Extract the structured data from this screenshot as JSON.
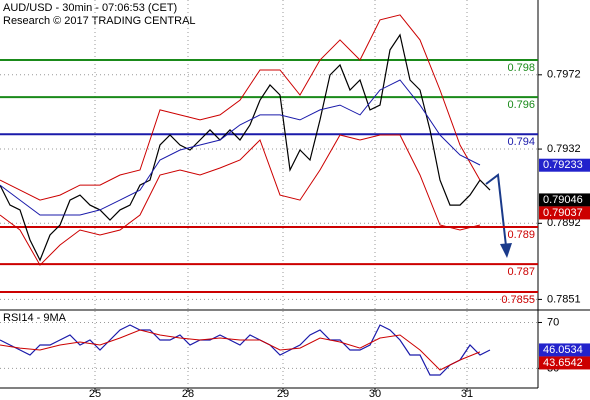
{
  "chart_data": [
    {
      "type": "line",
      "title": "AUD/USD - 30min - 07:06:53 (CET)",
      "subtitle": "Research © 2017 TRADING CENTRAL",
      "x": [
        0,
        1,
        2,
        3,
        4,
        5,
        6,
        7,
        8,
        9,
        10,
        11,
        12,
        13,
        14,
        15,
        16,
        17,
        18,
        19,
        20,
        21,
        22,
        23,
        24,
        25,
        26,
        27,
        28,
        29,
        30,
        31,
        32,
        33,
        34,
        35,
        36,
        37,
        38,
        39,
        40,
        41,
        42,
        43,
        44,
        45,
        46,
        47,
        48,
        49
      ],
      "xlim": [
        0,
        53.8
      ],
      "ylim": [
        0.78453,
        0.80123
      ],
      "yticks": [
        0.7972,
        0.7932,
        0.7892,
        0.7851
      ],
      "grid": true,
      "series": [
        {
          "color": "#000000",
          "values": [
            0.79126,
            0.79018,
            0.78992,
            0.7883,
            0.78722,
            0.78857,
            0.78911,
            0.79045,
            0.79072,
            0.79018,
            0.78992,
            0.78938,
            0.78992,
            0.79018,
            0.79126,
            0.79153,
            0.79342,
            0.79396,
            0.79342,
            0.79315,
            0.79369,
            0.79423,
            0.79369,
            0.79423,
            0.79369,
            0.7945,
            0.79584,
            0.79665,
            0.79611,
            0.79207,
            0.79315,
            0.79261,
            0.79477,
            0.79719,
            0.79773,
            0.79638,
            0.79692,
            0.79531,
            0.79557,
            0.79854,
            0.79935,
            0.79692,
            0.79638,
            0.79423,
            0.79153,
            0.79018,
            0.79018,
            0.79072,
            0.79153,
            0.79099
          ]
        },
        {
          "color": "#cc0000",
          "x": [
            0,
            2,
            4,
            6,
            8,
            10,
            12,
            14,
            16,
            18,
            20,
            22,
            24,
            26,
            28,
            30,
            32,
            34,
            36,
            38,
            40,
            42,
            44,
            46,
            48
          ],
          "values": [
            0.79153,
            0.79099,
            0.79045,
            0.79072,
            0.79126,
            0.79126,
            0.7918,
            0.79207,
            0.79531,
            0.79504,
            0.79477,
            0.79504,
            0.79584,
            0.79746,
            0.79746,
            0.79611,
            0.798,
            0.79908,
            0.798,
            0.80016,
            0.80043,
            0.79908,
            0.79638,
            0.79342,
            0.79153
          ]
        },
        {
          "color": "#cc0000",
          "x": [
            0,
            2,
            4,
            6,
            8,
            10,
            12,
            14,
            16,
            18,
            20,
            22,
            24,
            26,
            28,
            30,
            32,
            34,
            36,
            38,
            40,
            42,
            44,
            46,
            48
          ],
          "values": [
            0.78965,
            0.78884,
            0.78695,
            0.78803,
            0.78884,
            0.78857,
            0.78884,
            0.78965,
            0.7918,
            0.79207,
            0.7918,
            0.79218,
            0.79261,
            0.79369,
            0.79072,
            0.79045,
            0.79207,
            0.79396,
            0.79369,
            0.79396,
            0.79396,
            0.7918,
            0.78911,
            0.78884,
            0.78911
          ]
        },
        {
          "color": "#1a1aaa",
          "x": [
            0,
            2,
            4,
            6,
            8,
            10,
            12,
            14,
            16,
            18,
            20,
            22,
            24,
            26,
            28,
            30,
            32,
            34,
            36,
            38,
            40,
            42,
            44,
            46,
            48
          ],
          "values": [
            0.79126,
            0.79045,
            0.78965,
            0.78965,
            0.78965,
            0.78992,
            0.79045,
            0.79099,
            0.79261,
            0.79315,
            0.79342,
            0.79369,
            0.7945,
            0.79504,
            0.79504,
            0.79477,
            0.79531,
            0.79557,
            0.79504,
            0.79638,
            0.79692,
            0.79557,
            0.79396,
            0.79288,
            0.79234
          ]
        }
      ],
      "levels": [
        {
          "value": 0.798,
          "color": "#1a8a1a"
        },
        {
          "value": 0.796,
          "color": "#1a8a1a"
        },
        {
          "value": 0.794,
          "color": "#1a1aaa"
        },
        {
          "value": 0.789,
          "color": "#cc0000"
        },
        {
          "value": 0.787,
          "color": "#cc0000"
        },
        {
          "value": 0.7855,
          "color": "#cc0000"
        }
      ],
      "markers": [
        {
          "value": 0.79233,
          "color": "#2222cc"
        },
        {
          "value": 0.79046,
          "color": "#000000"
        },
        {
          "value": 0.79037,
          "color": "#cc0000"
        }
      ]
    },
    {
      "type": "line",
      "title": "RSI14 - 9MA",
      "x": [
        0,
        1,
        2,
        3,
        4,
        5,
        6,
        7,
        8,
        9,
        10,
        11,
        12,
        13,
        14,
        15,
        16,
        17,
        18,
        19,
        20,
        21,
        22,
        23,
        24,
        25,
        26,
        27,
        28,
        29,
        30,
        31,
        32,
        33,
        34,
        35,
        36,
        37,
        38,
        39,
        40,
        41,
        42,
        43,
        44,
        45,
        46,
        47,
        48,
        49
      ],
      "xlim": [
        0,
        53.8
      ],
      "ylim": [
        12,
        80
      ],
      "yticks": [
        70,
        30
      ],
      "xticks": [
        {
          "value": 9.5,
          "label": "25"
        },
        {
          "value": 18.8,
          "label": "28"
        },
        {
          "value": 28.3,
          "label": "29"
        },
        {
          "value": 37.5,
          "label": "30"
        },
        {
          "value": 46.7,
          "label": "31"
        }
      ],
      "grid": true,
      "series": [
        {
          "color": "#1a1aaa",
          "values": [
            54.7,
            50.4,
            46.0,
            41.6,
            50.4,
            50.4,
            54.7,
            59.1,
            50.4,
            54.7,
            46.0,
            54.7,
            63.4,
            67.8,
            63.4,
            63.4,
            54.7,
            54.7,
            59.1,
            50.4,
            54.7,
            54.7,
            59.1,
            54.7,
            50.4,
            59.1,
            54.7,
            50.4,
            41.6,
            46.0,
            50.4,
            59.1,
            63.4,
            54.7,
            54.7,
            46.0,
            46.0,
            50.4,
            67.8,
            63.4,
            54.7,
            41.6,
            41.6,
            24.2,
            24.2,
            32.9,
            37.3,
            50.4,
            41.6,
            46.0
          ]
        },
        {
          "color": "#cc0000",
          "x": [
            0,
            2,
            4,
            6,
            8,
            10,
            12,
            14,
            16,
            18,
            20,
            22,
            24,
            26,
            28,
            30,
            32,
            34,
            36,
            38,
            40,
            42,
            44,
            46,
            48
          ],
          "values": [
            50.4,
            47.7,
            46.0,
            50.4,
            53.0,
            50.4,
            56.5,
            63.4,
            59.1,
            56.5,
            54.7,
            56.5,
            54.7,
            54.7,
            46.0,
            47.7,
            56.5,
            53.0,
            47.7,
            56.5,
            59.1,
            46.0,
            28.6,
            37.3,
            44.3
          ]
        }
      ],
      "markers": [
        {
          "value": 46.0534,
          "color": "#2222cc"
        },
        {
          "value": 43.6542,
          "color": "#cc0000"
        }
      ]
    }
  ]
}
